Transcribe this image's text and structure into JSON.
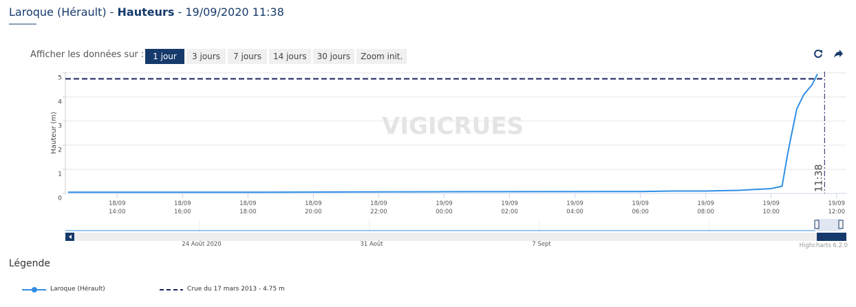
{
  "header": {
    "title_parts": [
      "Laroque (Hérault) - ",
      "Hauteurs",
      " - 19/09/2020 11:38"
    ]
  },
  "controls": {
    "label": "Afficher les données sur :",
    "buttons": [
      "1 jour",
      "3 jours",
      "7 jours",
      "14 jours",
      "30 jours",
      "Zoom init."
    ],
    "active": 0
  },
  "chart_data": {
    "type": "line",
    "y_label": "Hauteur (m)",
    "watermark": "VIGICRUES",
    "x": [
      "18/09 12:30",
      "18/09 18:00",
      "19/09 00:00",
      "19/09 06:00",
      "19/09 07:00",
      "19/09 08:00",
      "19/09 09:00",
      "19/09 10:00",
      "19/09 10:20",
      "19/09 10:30",
      "19/09 10:37",
      "19/09 10:47",
      "19/09 11:00",
      "19/09 11:15",
      "19/09 11:25"
    ],
    "series": [
      {
        "name": "Laroque (Hérault)",
        "color": "#2f8ee5",
        "values": [
          0.05,
          0.05,
          0.07,
          0.08,
          0.1,
          0.1,
          0.13,
          0.2,
          0.3,
          1.6,
          2.4,
          3.5,
          4.1,
          4.5,
          4.95
        ]
      }
    ],
    "threshold": {
      "name": "Crue du 17 mars 2013 - 4.75 m",
      "value": 4.75,
      "color": "#1a1f5e"
    },
    "marker_line": {
      "x": "19/09 11:38",
      "label": "11:38"
    },
    "xlim": [
      "18/09 12:25",
      "19/09 12:18"
    ],
    "xticks": [
      "18/09 14:00",
      "18/09 16:00",
      "18/09 18:00",
      "18/09 20:00",
      "18/09 22:00",
      "19/09 00:00",
      "19/09 02:00",
      "19/09 04:00",
      "19/09 06:00",
      "19/09 08:00",
      "19/09 10:00",
      "19/09 12:00"
    ],
    "ylim": [
      0,
      5.05
    ],
    "yticks": [
      0,
      1,
      2,
      3,
      4,
      5
    ],
    "grid": true
  },
  "navigator": {
    "labels": [
      "24 Août 2020",
      "31 Août",
      "7 Sept"
    ]
  },
  "credits": "Highcharts 6.2.0",
  "legend_title": "Légende"
}
